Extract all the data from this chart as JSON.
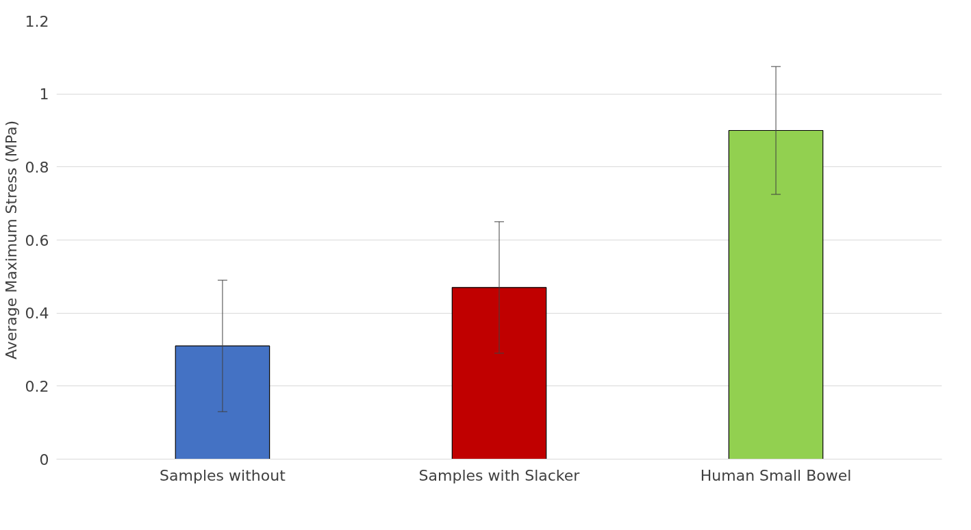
{
  "chart_data": {
    "type": "bar",
    "ylabel": "Average Maximum Stress (MPa)",
    "categories": [
      "Samples without",
      "Samples with Slacker",
      "Human Small Bowel"
    ],
    "values": [
      0.31,
      0.47,
      0.9
    ],
    "colors": [
      "#4472c4",
      "#c00000",
      "#92d050"
    ],
    "errors": [
      0.18,
      0.18,
      0.175
    ],
    "ylim": [
      0,
      1.2
    ],
    "yticks": [
      0,
      0.2,
      0.4,
      0.6,
      0.8,
      1,
      1.2
    ],
    "grid": "y"
  }
}
